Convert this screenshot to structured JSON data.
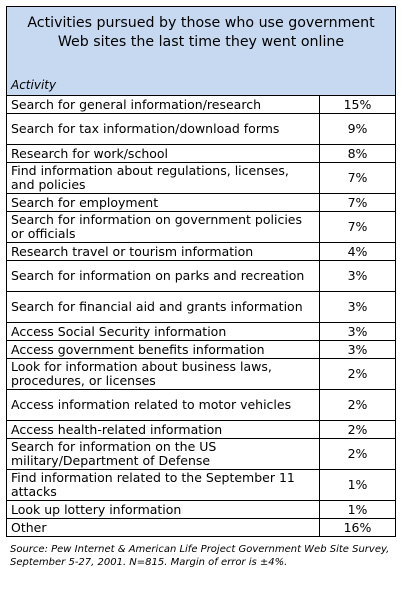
{
  "title": "Activities pursued by those who use government Web sites the last time they went online",
  "column_header": "Activity",
  "rows": [
    {
      "activity": "Search for general information/research",
      "value": "15%"
    },
    {
      "activity": "Search for tax information/download forms",
      "value": "9%"
    },
    {
      "activity": "Research for work/school",
      "value": "8%"
    },
    {
      "activity": "Find information about regulations, licenses, and policies",
      "value": "7%"
    },
    {
      "activity": "Search for employment",
      "value": "7%"
    },
    {
      "activity": "Search for information on government policies or officials",
      "value": "7%"
    },
    {
      "activity": "Research travel or tourism information",
      "value": "4%"
    },
    {
      "activity": "Search for information on parks and recreation",
      "value": "3%"
    },
    {
      "activity": "Search for financial aid and grants information",
      "value": "3%"
    },
    {
      "activity": "Access Social Security information",
      "value": "3%"
    },
    {
      "activity": "Access government benefits information",
      "value": "3%"
    },
    {
      "activity": "Look for information about business laws, procedures, or licenses",
      "value": "2%"
    },
    {
      "activity": "Access information related to motor vehicles",
      "value": "2%"
    },
    {
      "activity": "Access health-related information",
      "value": "2%"
    },
    {
      "activity": "Search for information on the US military/Department of Defense",
      "value": "2%"
    },
    {
      "activity": "Find information related to the September 11 attacks",
      "value": "1%"
    },
    {
      "activity": "Look up lottery information",
      "value": "1%"
    },
    {
      "activity": "Other",
      "value": "16%"
    }
  ],
  "source": "Source: Pew Internet & American Life Project Government Web Site Survey, September 5-27, 2001. N=815. Margin of error is ±4%.",
  "chart_data": {
    "type": "table",
    "title": "Activities pursued by those who use government Web sites the last time they went online",
    "columns": [
      "Activity",
      ""
    ],
    "categories": [
      "Search for general information/research",
      "Search for tax information/download forms",
      "Research for work/school",
      "Find information about regulations, licenses, and policies",
      "Search for employment",
      "Search for information on government policies or officials",
      "Research travel or tourism information",
      "Search for information on parks and recreation",
      "Search for financial aid and grants information",
      "Access Social Security information",
      "Access government benefits information",
      "Look for information about business laws, procedures, or licenses",
      "Access information related to motor vehicles",
      "Access health-related information",
      "Search for information on the US military/Department of Defense",
      "Find information related to the September 11 attacks",
      "Look up lottery information",
      "Other"
    ],
    "values": [
      15,
      9,
      8,
      7,
      7,
      7,
      4,
      3,
      3,
      3,
      3,
      2,
      2,
      2,
      2,
      1,
      1,
      16
    ]
  }
}
